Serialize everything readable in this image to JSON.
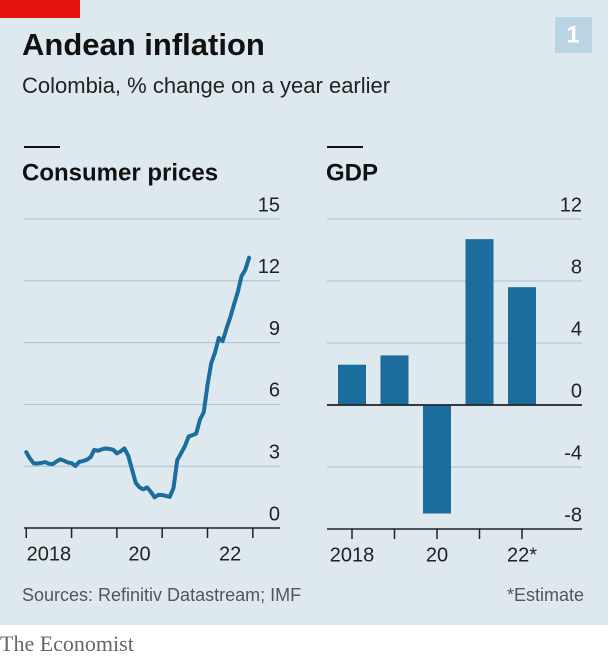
{
  "title": "Andean inflation",
  "subtitle": "Colombia, % change on a year earlier",
  "badge": "1",
  "source": "Sources: Refinitiv Datastream; IMF",
  "note": "*Estimate",
  "brand": "The Economist",
  "chart_data": [
    {
      "type": "line",
      "title": "Consumer prices",
      "color": "#1b6d9b",
      "x": [
        2018,
        2018.083,
        2018.167,
        2018.25,
        2018.333,
        2018.417,
        2018.5,
        2018.583,
        2018.667,
        2018.75,
        2018.833,
        2018.917,
        2019,
        2019.083,
        2019.167,
        2019.25,
        2019.333,
        2019.417,
        2019.5,
        2019.583,
        2019.667,
        2019.75,
        2019.833,
        2019.917,
        2020,
        2020.083,
        2020.167,
        2020.25,
        2020.333,
        2020.417,
        2020.5,
        2020.583,
        2020.667,
        2020.75,
        2020.833,
        2020.917,
        2021,
        2021.083,
        2021.167,
        2021.25,
        2021.333,
        2021.417,
        2021.5,
        2021.583,
        2021.667,
        2021.75,
        2021.833,
        2021.917,
        2022,
        2022.083,
        2022.167,
        2022.25,
        2022.333,
        2022.417,
        2022.5,
        2022.583,
        2022.667,
        2022.75,
        2022.833,
        2022.917
      ],
      "values": [
        3.68,
        3.37,
        3.14,
        3.13,
        3.16,
        3.2,
        3.12,
        3.1,
        3.23,
        3.33,
        3.27,
        3.18,
        3.15,
        3.01,
        3.21,
        3.25,
        3.31,
        3.43,
        3.79,
        3.75,
        3.82,
        3.86,
        3.84,
        3.8,
        3.62,
        3.72,
        3.86,
        3.51,
        2.85,
        2.19,
        1.97,
        1.88,
        1.97,
        1.75,
        1.49,
        1.61,
        1.6,
        1.56,
        1.51,
        1.95,
        3.3,
        3.63,
        3.97,
        4.44,
        4.51,
        4.58,
        5.26,
        5.62,
        6.94,
        8.01,
        8.53,
        9.23,
        9.07,
        9.67,
        10.21,
        10.84,
        11.44,
        12.22,
        12.53,
        13.12
      ],
      "xlim": [
        2017.95,
        2023.6
      ],
      "xticks": [
        2018,
        2019,
        2020,
        2021,
        2022,
        2023
      ],
      "xticklabels": [
        {
          "value": 2018,
          "label": "2018"
        },
        {
          "value": 2020,
          "label": "20"
        },
        {
          "value": 2022,
          "label": "22"
        }
      ],
      "ylim": [
        0,
        15
      ],
      "yticks": [
        0,
        3,
        6,
        9,
        12,
        15
      ],
      "grid": true
    },
    {
      "type": "bar",
      "title": "GDP",
      "color": "#1b6d9b",
      "categories": [
        "2018",
        null,
        "20",
        null,
        "22*"
      ],
      "values": [
        2.6,
        3.2,
        -7.0,
        10.7,
        7.6
      ],
      "ylim": [
        -8,
        12
      ],
      "yticks": [
        -8,
        -4,
        0,
        4,
        8,
        12
      ],
      "grid": true
    }
  ]
}
